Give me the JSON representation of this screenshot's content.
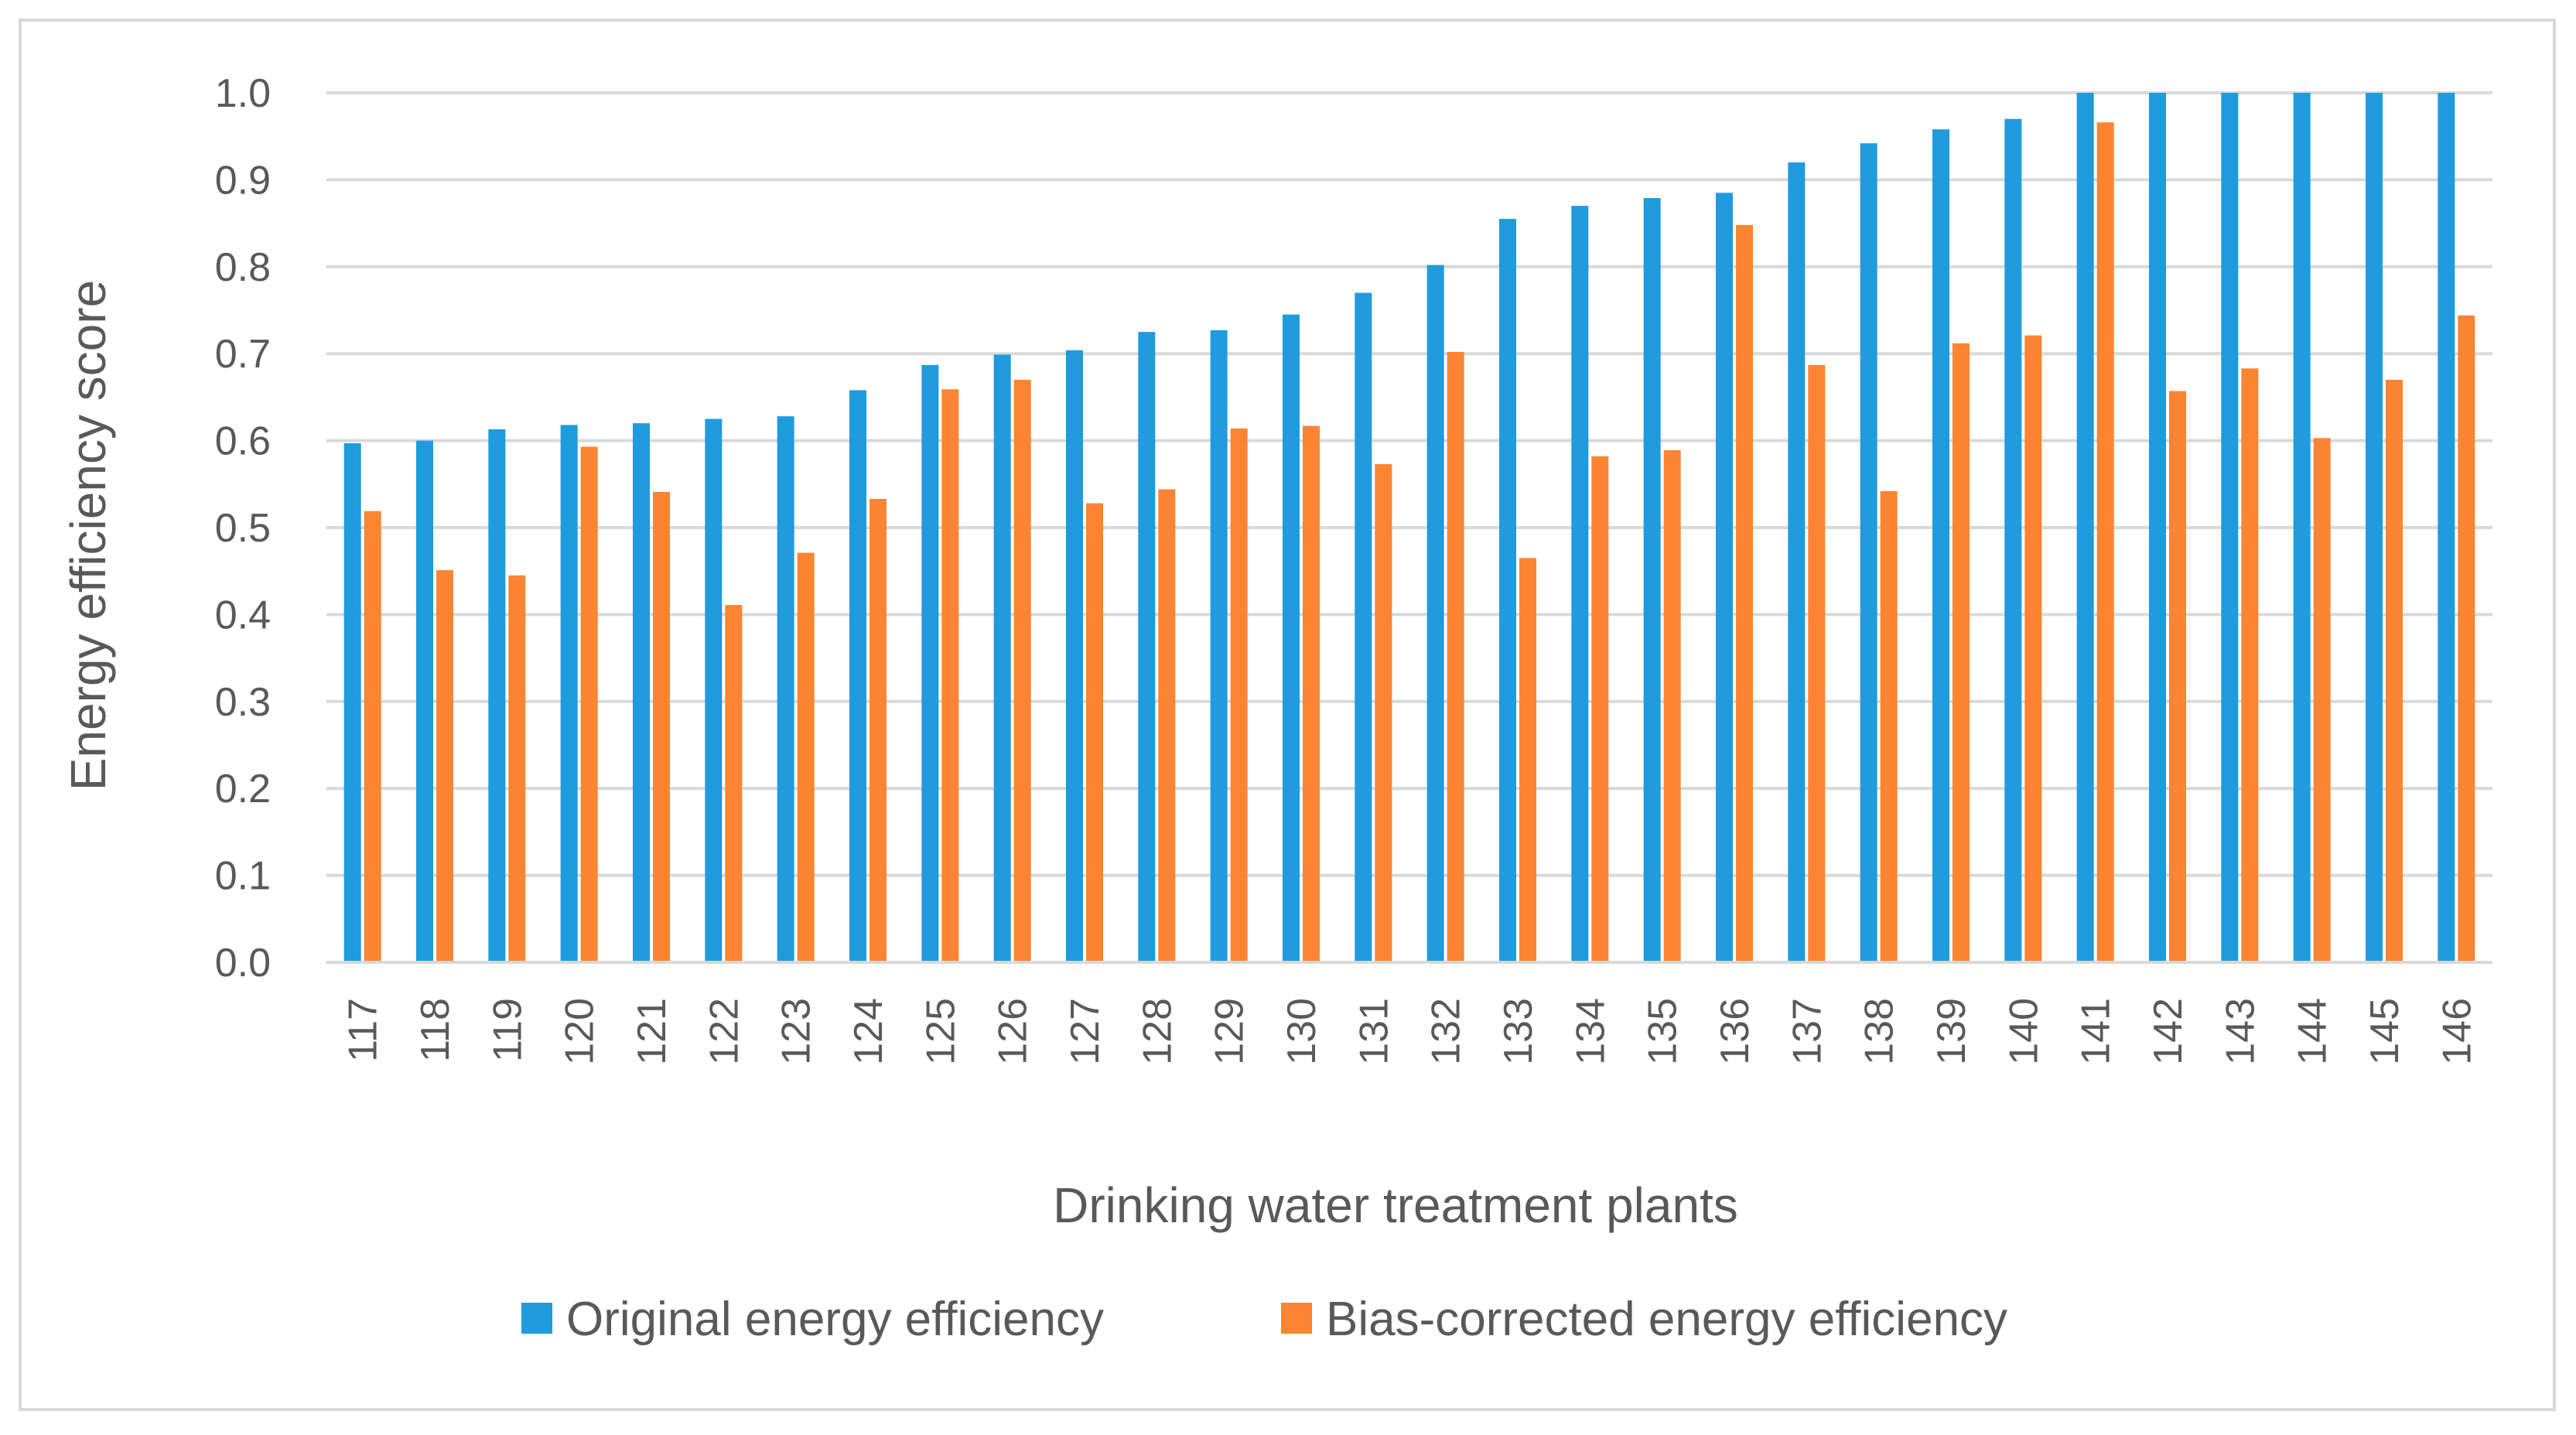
{
  "chart_data": {
    "type": "bar",
    "title": "",
    "xlabel": "Drinking water treatment plants",
    "ylabel": "Energy efficiency score",
    "ylim": [
      0,
      1.0
    ],
    "yticks": [
      "0.0",
      "0.1",
      "0.2",
      "0.3",
      "0.4",
      "0.5",
      "0.6",
      "0.7",
      "0.8",
      "0.9",
      "1.0"
    ],
    "grid": true,
    "legend_position": "bottom",
    "categories": [
      "117",
      "118",
      "119",
      "120",
      "121",
      "122",
      "123",
      "124",
      "125",
      "126",
      "127",
      "128",
      "129",
      "130",
      "131",
      "132",
      "133",
      "134",
      "135",
      "136",
      "137",
      "138",
      "139",
      "140",
      "141",
      "142",
      "143",
      "144",
      "145",
      "146"
    ],
    "series": [
      {
        "name": "Original energy efficiency",
        "color": "#1f9bde",
        "values": [
          0.597,
          0.6,
          0.613,
          0.618,
          0.62,
          0.625,
          0.628,
          0.658,
          0.687,
          0.699,
          0.704,
          0.725,
          0.727,
          0.745,
          0.77,
          0.802,
          0.855,
          0.87,
          0.879,
          0.885,
          0.92,
          0.942,
          0.958,
          0.97,
          1.0,
          1.0,
          1.0,
          1.0,
          1.0,
          1.0
        ]
      },
      {
        "name": "Bias-corrected energy efficiency",
        "color": "#fb8532",
        "values": [
          0.519,
          0.451,
          0.445,
          0.593,
          0.541,
          0.411,
          0.471,
          0.533,
          0.659,
          0.67,
          0.528,
          0.544,
          0.614,
          0.617,
          0.573,
          0.702,
          0.465,
          0.582,
          0.589,
          0.848,
          0.687,
          0.542,
          0.712,
          0.721,
          0.966,
          0.657,
          0.683,
          0.603,
          0.67,
          0.744
        ]
      }
    ]
  }
}
